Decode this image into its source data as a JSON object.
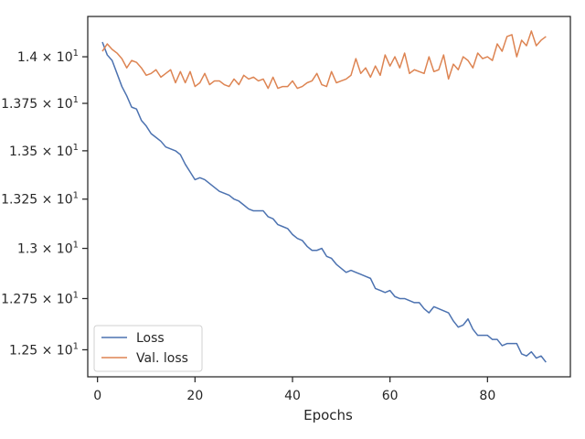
{
  "chart_data": {
    "type": "line",
    "title": "",
    "xlabel": "Epochs",
    "ylabel": "",
    "xlim": [
      -2,
      97
    ],
    "ylim": [
      12.37,
      14.22
    ],
    "x_ticks": [
      0,
      20,
      40,
      60,
      80
    ],
    "y_ticks": [
      {
        "value": 12.5,
        "mantissa": "1.25",
        "exp": "1"
      },
      {
        "value": 12.75,
        "mantissa": "1.275",
        "exp": "1"
      },
      {
        "value": 13.0,
        "mantissa": "1.3",
        "exp": "1"
      },
      {
        "value": 13.25,
        "mantissa": "1.325",
        "exp": "1"
      },
      {
        "value": 13.5,
        "mantissa": "1.35",
        "exp": "1"
      },
      {
        "value": 13.75,
        "mantissa": "1.375",
        "exp": "1"
      },
      {
        "value": 14.0,
        "mantissa": "1.4",
        "exp": "1"
      }
    ],
    "y_scale": "log",
    "grid": false,
    "legend_position": "lower-left",
    "series": [
      {
        "name": "Loss",
        "color": "#4c72b0",
        "x": [
          1,
          2,
          3,
          4,
          5,
          6,
          7,
          8,
          9,
          10,
          11,
          12,
          13,
          14,
          15,
          16,
          17,
          18,
          19,
          20,
          21,
          22,
          23,
          24,
          25,
          26,
          27,
          28,
          29,
          30,
          31,
          32,
          33,
          34,
          35,
          36,
          37,
          38,
          39,
          40,
          41,
          42,
          43,
          44,
          45,
          46,
          47,
          48,
          49,
          50,
          51,
          52,
          53,
          54,
          55,
          56,
          57,
          58,
          59,
          60,
          61,
          62,
          63,
          64,
          65,
          66,
          67,
          68,
          69,
          70,
          71,
          72,
          73,
          74,
          75,
          76,
          77,
          78,
          79,
          80,
          81,
          82,
          83,
          84,
          85,
          86,
          87,
          88,
          89,
          90,
          91,
          92
        ],
        "values": [
          14.08,
          14.01,
          13.98,
          13.91,
          13.84,
          13.79,
          13.73,
          13.72,
          13.66,
          13.63,
          13.59,
          13.57,
          13.55,
          13.52,
          13.51,
          13.5,
          13.48,
          13.43,
          13.39,
          13.35,
          13.36,
          13.35,
          13.33,
          13.31,
          13.29,
          13.28,
          13.27,
          13.25,
          13.24,
          13.22,
          13.2,
          13.19,
          13.19,
          13.19,
          13.16,
          13.15,
          13.12,
          13.11,
          13.1,
          13.07,
          13.05,
          13.04,
          13.01,
          12.99,
          12.99,
          13.0,
          12.96,
          12.95,
          12.92,
          12.9,
          12.88,
          12.89,
          12.88,
          12.87,
          12.86,
          12.85,
          12.8,
          12.79,
          12.78,
          12.79,
          12.76,
          12.75,
          12.75,
          12.74,
          12.73,
          12.73,
          12.7,
          12.68,
          12.71,
          12.7,
          12.69,
          12.68,
          12.64,
          12.61,
          12.62,
          12.65,
          12.6,
          12.57,
          12.57,
          12.57,
          12.55,
          12.55,
          12.52,
          12.53,
          12.53,
          12.53,
          12.48,
          12.47,
          12.49,
          12.46,
          12.47,
          12.44
        ]
      },
      {
        "name": "Val. loss",
        "color": "#dd8452",
        "x": [
          1,
          2,
          3,
          4,
          5,
          6,
          7,
          8,
          9,
          10,
          11,
          12,
          13,
          14,
          15,
          16,
          17,
          18,
          19,
          20,
          21,
          22,
          23,
          24,
          25,
          26,
          27,
          28,
          29,
          30,
          31,
          32,
          33,
          34,
          35,
          36,
          37,
          38,
          39,
          40,
          41,
          42,
          43,
          44,
          45,
          46,
          47,
          48,
          49,
          50,
          51,
          52,
          53,
          54,
          55,
          56,
          57,
          58,
          59,
          60,
          61,
          62,
          63,
          64,
          65,
          66,
          67,
          68,
          69,
          70,
          71,
          72,
          73,
          74,
          75,
          76,
          77,
          78,
          79,
          80,
          81,
          82,
          83,
          84,
          85,
          86,
          87,
          88,
          89,
          90,
          91,
          92
        ],
        "values": [
          14.03,
          14.07,
          14.04,
          14.02,
          13.99,
          13.94,
          13.98,
          13.97,
          13.94,
          13.9,
          13.91,
          13.93,
          13.89,
          13.91,
          13.93,
          13.86,
          13.92,
          13.86,
          13.92,
          13.84,
          13.86,
          13.91,
          13.85,
          13.87,
          13.87,
          13.85,
          13.84,
          13.88,
          13.85,
          13.9,
          13.88,
          13.89,
          13.87,
          13.88,
          13.83,
          13.89,
          13.83,
          13.84,
          13.84,
          13.87,
          13.83,
          13.84,
          13.86,
          13.87,
          13.91,
          13.85,
          13.84,
          13.92,
          13.86,
          13.87,
          13.88,
          13.9,
          13.99,
          13.91,
          13.94,
          13.89,
          13.95,
          13.9,
          14.01,
          13.95,
          14.0,
          13.94,
          14.02,
          13.91,
          13.93,
          13.92,
          13.91,
          14.0,
          13.92,
          13.93,
          14.01,
          13.88,
          13.96,
          13.93,
          14.0,
          13.98,
          13.94,
          14.02,
          13.99,
          14.0,
          13.98,
          14.07,
          14.03,
          14.11,
          14.12,
          14.0,
          14.09,
          14.06,
          14.14,
          14.06,
          14.09,
          14.11
        ]
      }
    ]
  }
}
